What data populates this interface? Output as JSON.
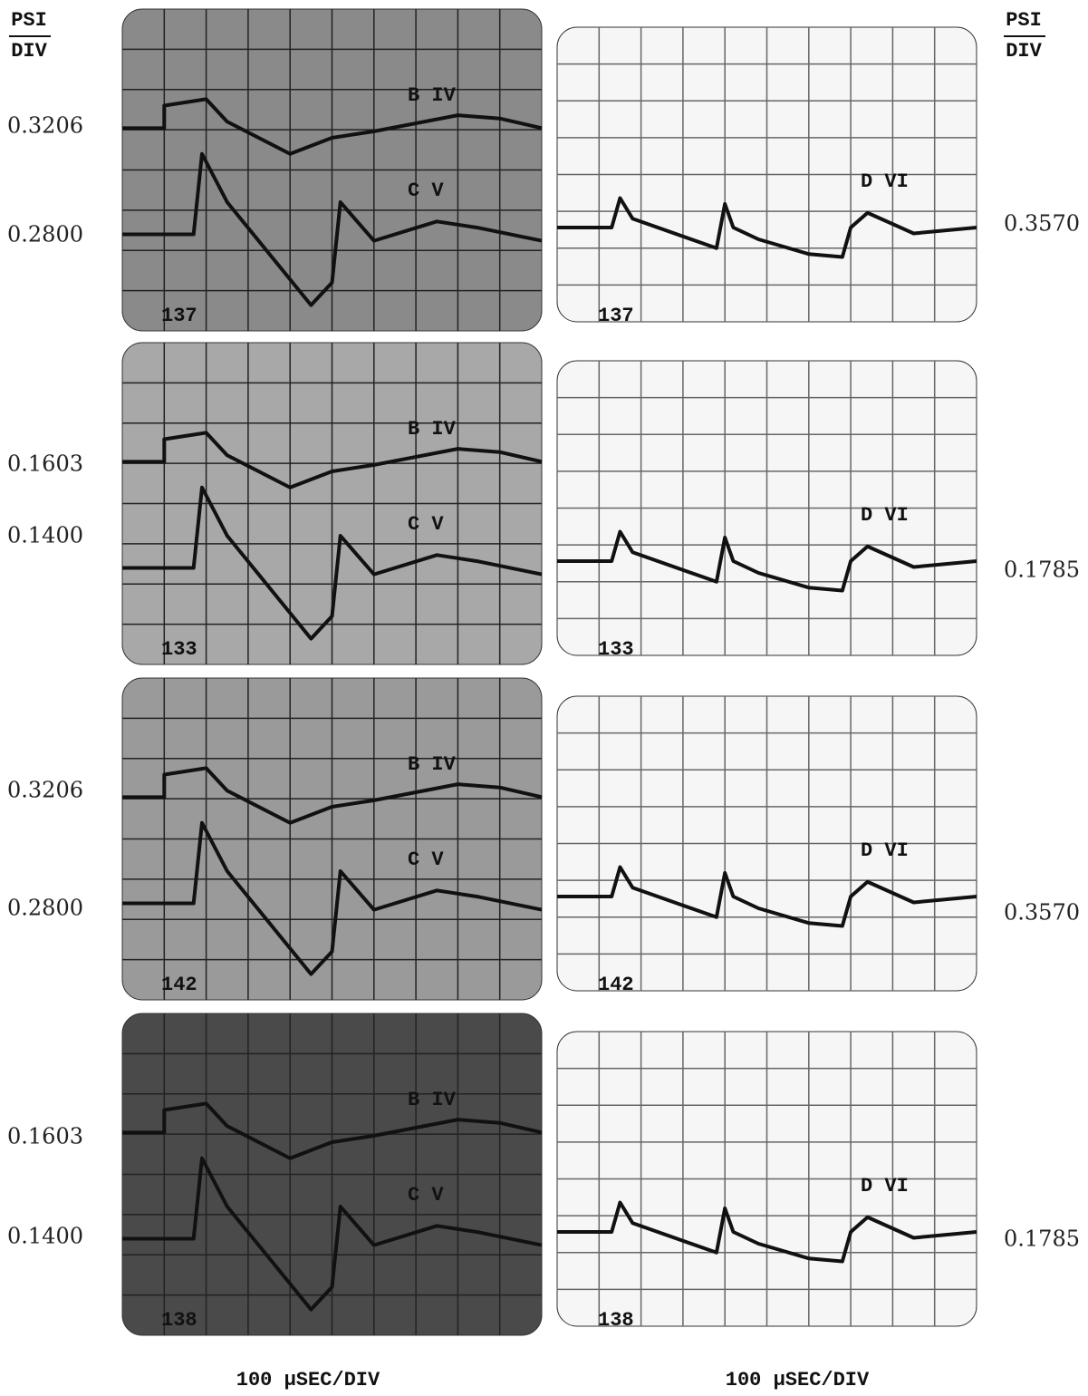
{
  "header": {
    "left_unit": {
      "top": "PSI",
      "bottom": "DIV"
    },
    "right_unit": {
      "top": "PSI",
      "bottom": "DIV"
    }
  },
  "rows": [
    {
      "left_scales": [
        "0.3206",
        "0.2800"
      ],
      "left_traces": [
        "B IV",
        "C V"
      ],
      "left_shot": "137",
      "right_trace": "D VI",
      "right_shot": "137",
      "right_scale": "0.3570"
    },
    {
      "left_scales": [
        "0.1603",
        "0.1400"
      ],
      "left_traces": [
        "B IV",
        "C V"
      ],
      "left_shot": "133",
      "right_trace": "D VI",
      "right_shot": "133",
      "right_scale": "0.1785"
    },
    {
      "left_scales": [
        "0.3206",
        "0.2800"
      ],
      "left_traces": [
        "B IV",
        "C V"
      ],
      "left_shot": "142",
      "right_trace": "D VI",
      "right_shot": "142",
      "right_scale": "0.3570"
    },
    {
      "left_scales": [
        "0.1603",
        "0.1400"
      ],
      "left_traces": [
        "B IV",
        "C V"
      ],
      "left_shot": "138",
      "right_trace": "D VI",
      "right_shot": "138",
      "right_scale": "0.1785"
    }
  ],
  "footer": {
    "left_timebase": "100 μSEC/DIV",
    "right_timebase": "100 μSEC/DIV"
  }
}
